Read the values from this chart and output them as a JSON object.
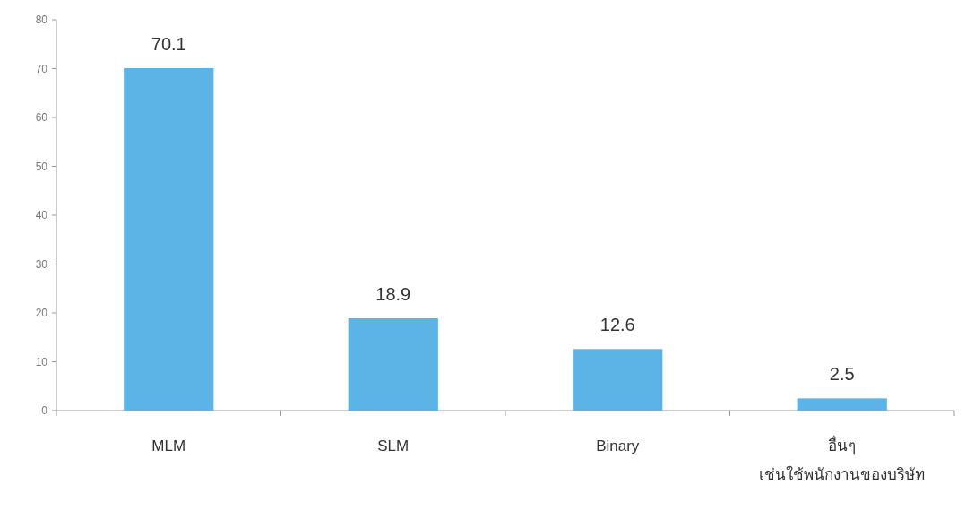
{
  "chart_data": {
    "type": "bar",
    "categories": [
      "MLM",
      "SLM",
      "Binary",
      "อื่นๆ\nเช่นใช้พนักงานของบริษัท"
    ],
    "values": [
      70.1,
      18.9,
      12.6,
      2.5
    ],
    "color": "#5bb3e6",
    "ylim": [
      0,
      80
    ],
    "yticks": [
      0,
      10,
      20,
      30,
      40,
      50,
      60,
      70,
      80
    ],
    "data_labels": true,
    "grid": false
  }
}
